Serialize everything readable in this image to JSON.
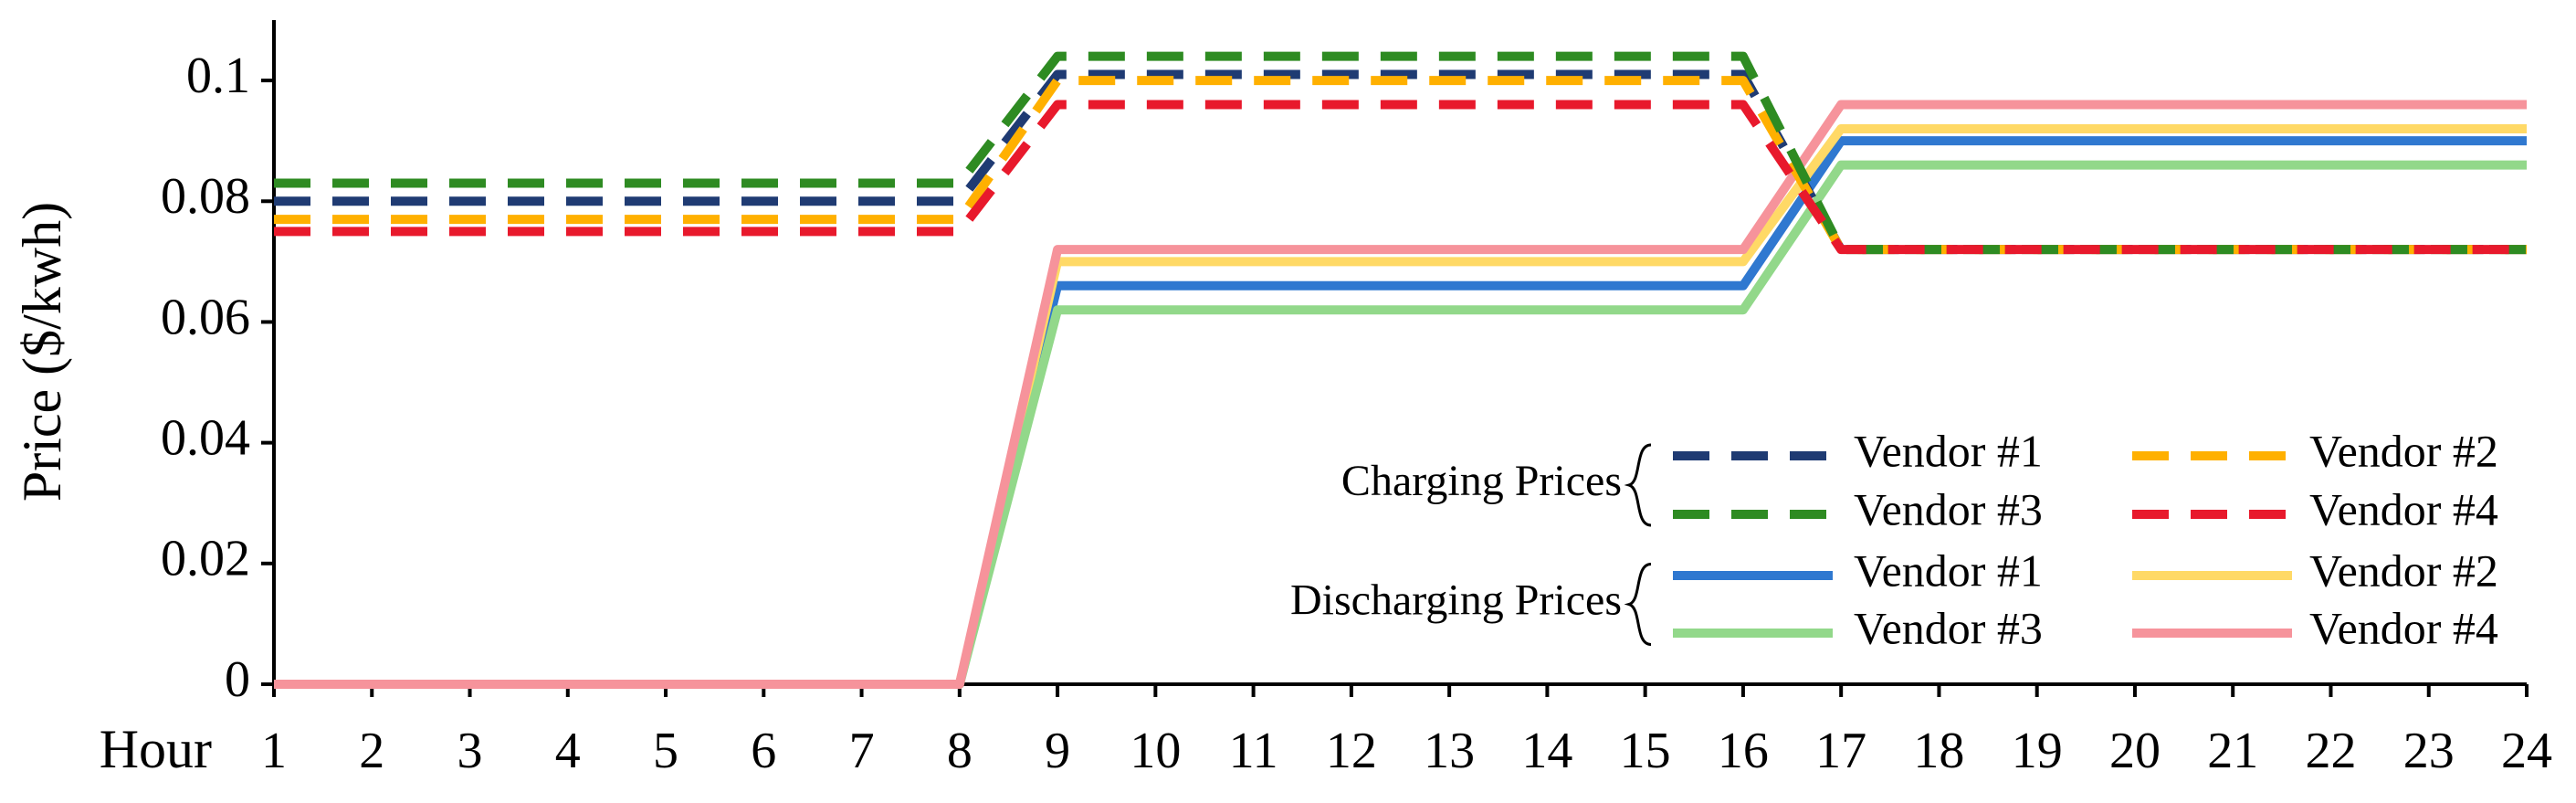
{
  "chart_data": {
    "type": "line",
    "y_label": "Price ($/kwh)",
    "x_label": "Hour",
    "x": [
      1,
      2,
      3,
      4,
      5,
      6,
      7,
      8,
      9,
      10,
      11,
      12,
      13,
      14,
      15,
      16,
      17,
      18,
      19,
      20,
      21,
      22,
      23,
      24
    ],
    "xlim": [
      1,
      24
    ],
    "xticks": [
      1,
      2,
      3,
      4,
      5,
      6,
      7,
      8,
      9,
      10,
      11,
      12,
      13,
      14,
      15,
      16,
      17,
      18,
      19,
      20,
      21,
      22,
      23,
      24
    ],
    "ylim": [
      0,
      0.11
    ],
    "yticks": [
      0,
      0.02,
      0.04,
      0.06,
      0.08,
      0.1
    ],
    "series_groups": [
      {
        "name": "Charging Prices",
        "line_style": "dashed",
        "series": [
          {
            "name": "Vendor #1",
            "color": "#1f3b73",
            "values": [
              0.08,
              0.08,
              0.08,
              0.08,
              0.08,
              0.08,
              0.08,
              0.08,
              0.101,
              0.101,
              0.101,
              0.101,
              0.101,
              0.101,
              0.101,
              0.101,
              0.072,
              0.072,
              0.072,
              0.072,
              0.072,
              0.072,
              0.072,
              0.072
            ]
          },
          {
            "name": "Vendor #2",
            "color": "#ffb000",
            "values": [
              0.077,
              0.077,
              0.077,
              0.077,
              0.077,
              0.077,
              0.077,
              0.077,
              0.1,
              0.1,
              0.1,
              0.1,
              0.1,
              0.1,
              0.1,
              0.1,
              0.072,
              0.072,
              0.072,
              0.072,
              0.072,
              0.072,
              0.072,
              0.072
            ]
          },
          {
            "name": "Vendor #3",
            "color": "#2e8b22",
            "values": [
              0.083,
              0.083,
              0.083,
              0.083,
              0.083,
              0.083,
              0.083,
              0.083,
              0.104,
              0.104,
              0.104,
              0.104,
              0.104,
              0.104,
              0.104,
              0.104,
              0.072,
              0.072,
              0.072,
              0.072,
              0.072,
              0.072,
              0.072,
              0.072
            ]
          },
          {
            "name": "Vendor #4",
            "color": "#e8192c",
            "values": [
              0.075,
              0.075,
              0.075,
              0.075,
              0.075,
              0.075,
              0.075,
              0.075,
              0.096,
              0.096,
              0.096,
              0.096,
              0.096,
              0.096,
              0.096,
              0.096,
              0.072,
              0.072,
              0.072,
              0.072,
              0.072,
              0.072,
              0.072,
              0.072
            ]
          }
        ]
      },
      {
        "name": "Discharging Prices",
        "line_style": "solid",
        "series": [
          {
            "name": "Vendor #1",
            "color": "#2f78d0",
            "values": [
              0,
              0,
              0,
              0,
              0,
              0,
              0,
              0,
              0.066,
              0.066,
              0.066,
              0.066,
              0.066,
              0.066,
              0.066,
              0.066,
              0.09,
              0.09,
              0.09,
              0.09,
              0.09,
              0.09,
              0.09,
              0.09
            ]
          },
          {
            "name": "Vendor #2",
            "color": "#ffd966",
            "values": [
              0,
              0,
              0,
              0,
              0,
              0,
              0,
              0,
              0.07,
              0.07,
              0.07,
              0.07,
              0.07,
              0.07,
              0.07,
              0.07,
              0.092,
              0.092,
              0.092,
              0.092,
              0.092,
              0.092,
              0.092,
              0.092
            ]
          },
          {
            "name": "Vendor #3",
            "color": "#92d88a",
            "values": [
              0,
              0,
              0,
              0,
              0,
              0,
              0,
              0,
              0.062,
              0.062,
              0.062,
              0.062,
              0.062,
              0.062,
              0.062,
              0.062,
              0.086,
              0.086,
              0.086,
              0.086,
              0.086,
              0.086,
              0.086,
              0.086
            ]
          },
          {
            "name": "Vendor #4",
            "color": "#f6939b",
            "values": [
              0,
              0,
              0,
              0,
              0,
              0,
              0,
              0,
              0.072,
              0.072,
              0.072,
              0.072,
              0.072,
              0.072,
              0.072,
              0.072,
              0.096,
              0.096,
              0.096,
              0.096,
              0.096,
              0.096,
              0.096,
              0.096
            ]
          }
        ]
      }
    ]
  }
}
